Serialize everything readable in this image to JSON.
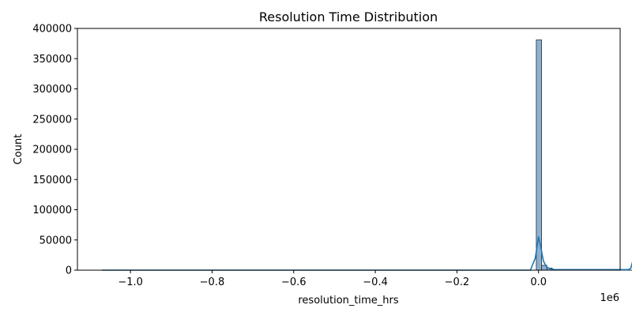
{
  "chart_data": {
    "type": "bar",
    "title": "Resolution Time Distribution",
    "xlabel": "resolution_time_hrs",
    "ylabel": "Count",
    "x_offset_label": "1e6",
    "xlim": [
      -1.13,
      0.2
    ],
    "ylim": [
      0,
      400000
    ],
    "x_ticks": [
      -1.0,
      -0.8,
      -0.6,
      -0.4,
      -0.2,
      0.0
    ],
    "x_tick_labels": [
      "−1.0",
      "−0.8",
      "−0.6",
      "−0.4",
      "−0.2",
      "0.0"
    ],
    "y_ticks": [
      0,
      50000,
      100000,
      150000,
      200000,
      250000,
      300000,
      350000,
      400000
    ],
    "y_tick_labels": [
      "0",
      "50000",
      "100000",
      "150000",
      "200000",
      "250000",
      "300000",
      "350000",
      "400000"
    ],
    "bin_range": [
      -1.07,
      0.24
    ],
    "bars": [
      {
        "x0": -0.0055,
        "x1": 0.0075,
        "value": 381000
      },
      {
        "x0": 0.0075,
        "x1": 0.0205,
        "value": 8000
      },
      {
        "x0": 0.0205,
        "x1": 0.0335,
        "value": 3500
      }
    ],
    "kde_line": {
      "x": [
        -1.07,
        -0.02,
        -0.008,
        0.0,
        0.005,
        0.012,
        0.02,
        0.03,
        0.04,
        0.046,
        0.052,
        0.058,
        0.064,
        0.07,
        0.076,
        0.082,
        0.088,
        0.094,
        0.1,
        0.106,
        0.112,
        0.118,
        0.124,
        0.13,
        0.136,
        0.142,
        0.148,
        0.154,
        0.16,
        0.166,
        0.172,
        0.178,
        0.184,
        0.19,
        0.196,
        0.202,
        0.208,
        0.214,
        0.22,
        0.226,
        0.232,
        0.238
      ],
      "y": [
        0,
        0,
        20000,
        55000,
        40000,
        15000,
        5000,
        2000,
        1000,
        1000,
        1000,
        1000,
        1000,
        1000,
        1000,
        1000,
        1000,
        1000,
        1000,
        1000,
        1000,
        1000,
        1000,
        1000,
        1000,
        1000,
        1000,
        1000,
        1000,
        1000,
        1000,
        1000,
        1000,
        1000,
        1000,
        1000,
        1000,
        1000,
        1000,
        3000,
        18000,
        33000
      ]
    },
    "bar_color": "#8fb0cc",
    "bar_edge_color": "#1f3044",
    "line_color": "#1f77b4",
    "grid": false
  }
}
